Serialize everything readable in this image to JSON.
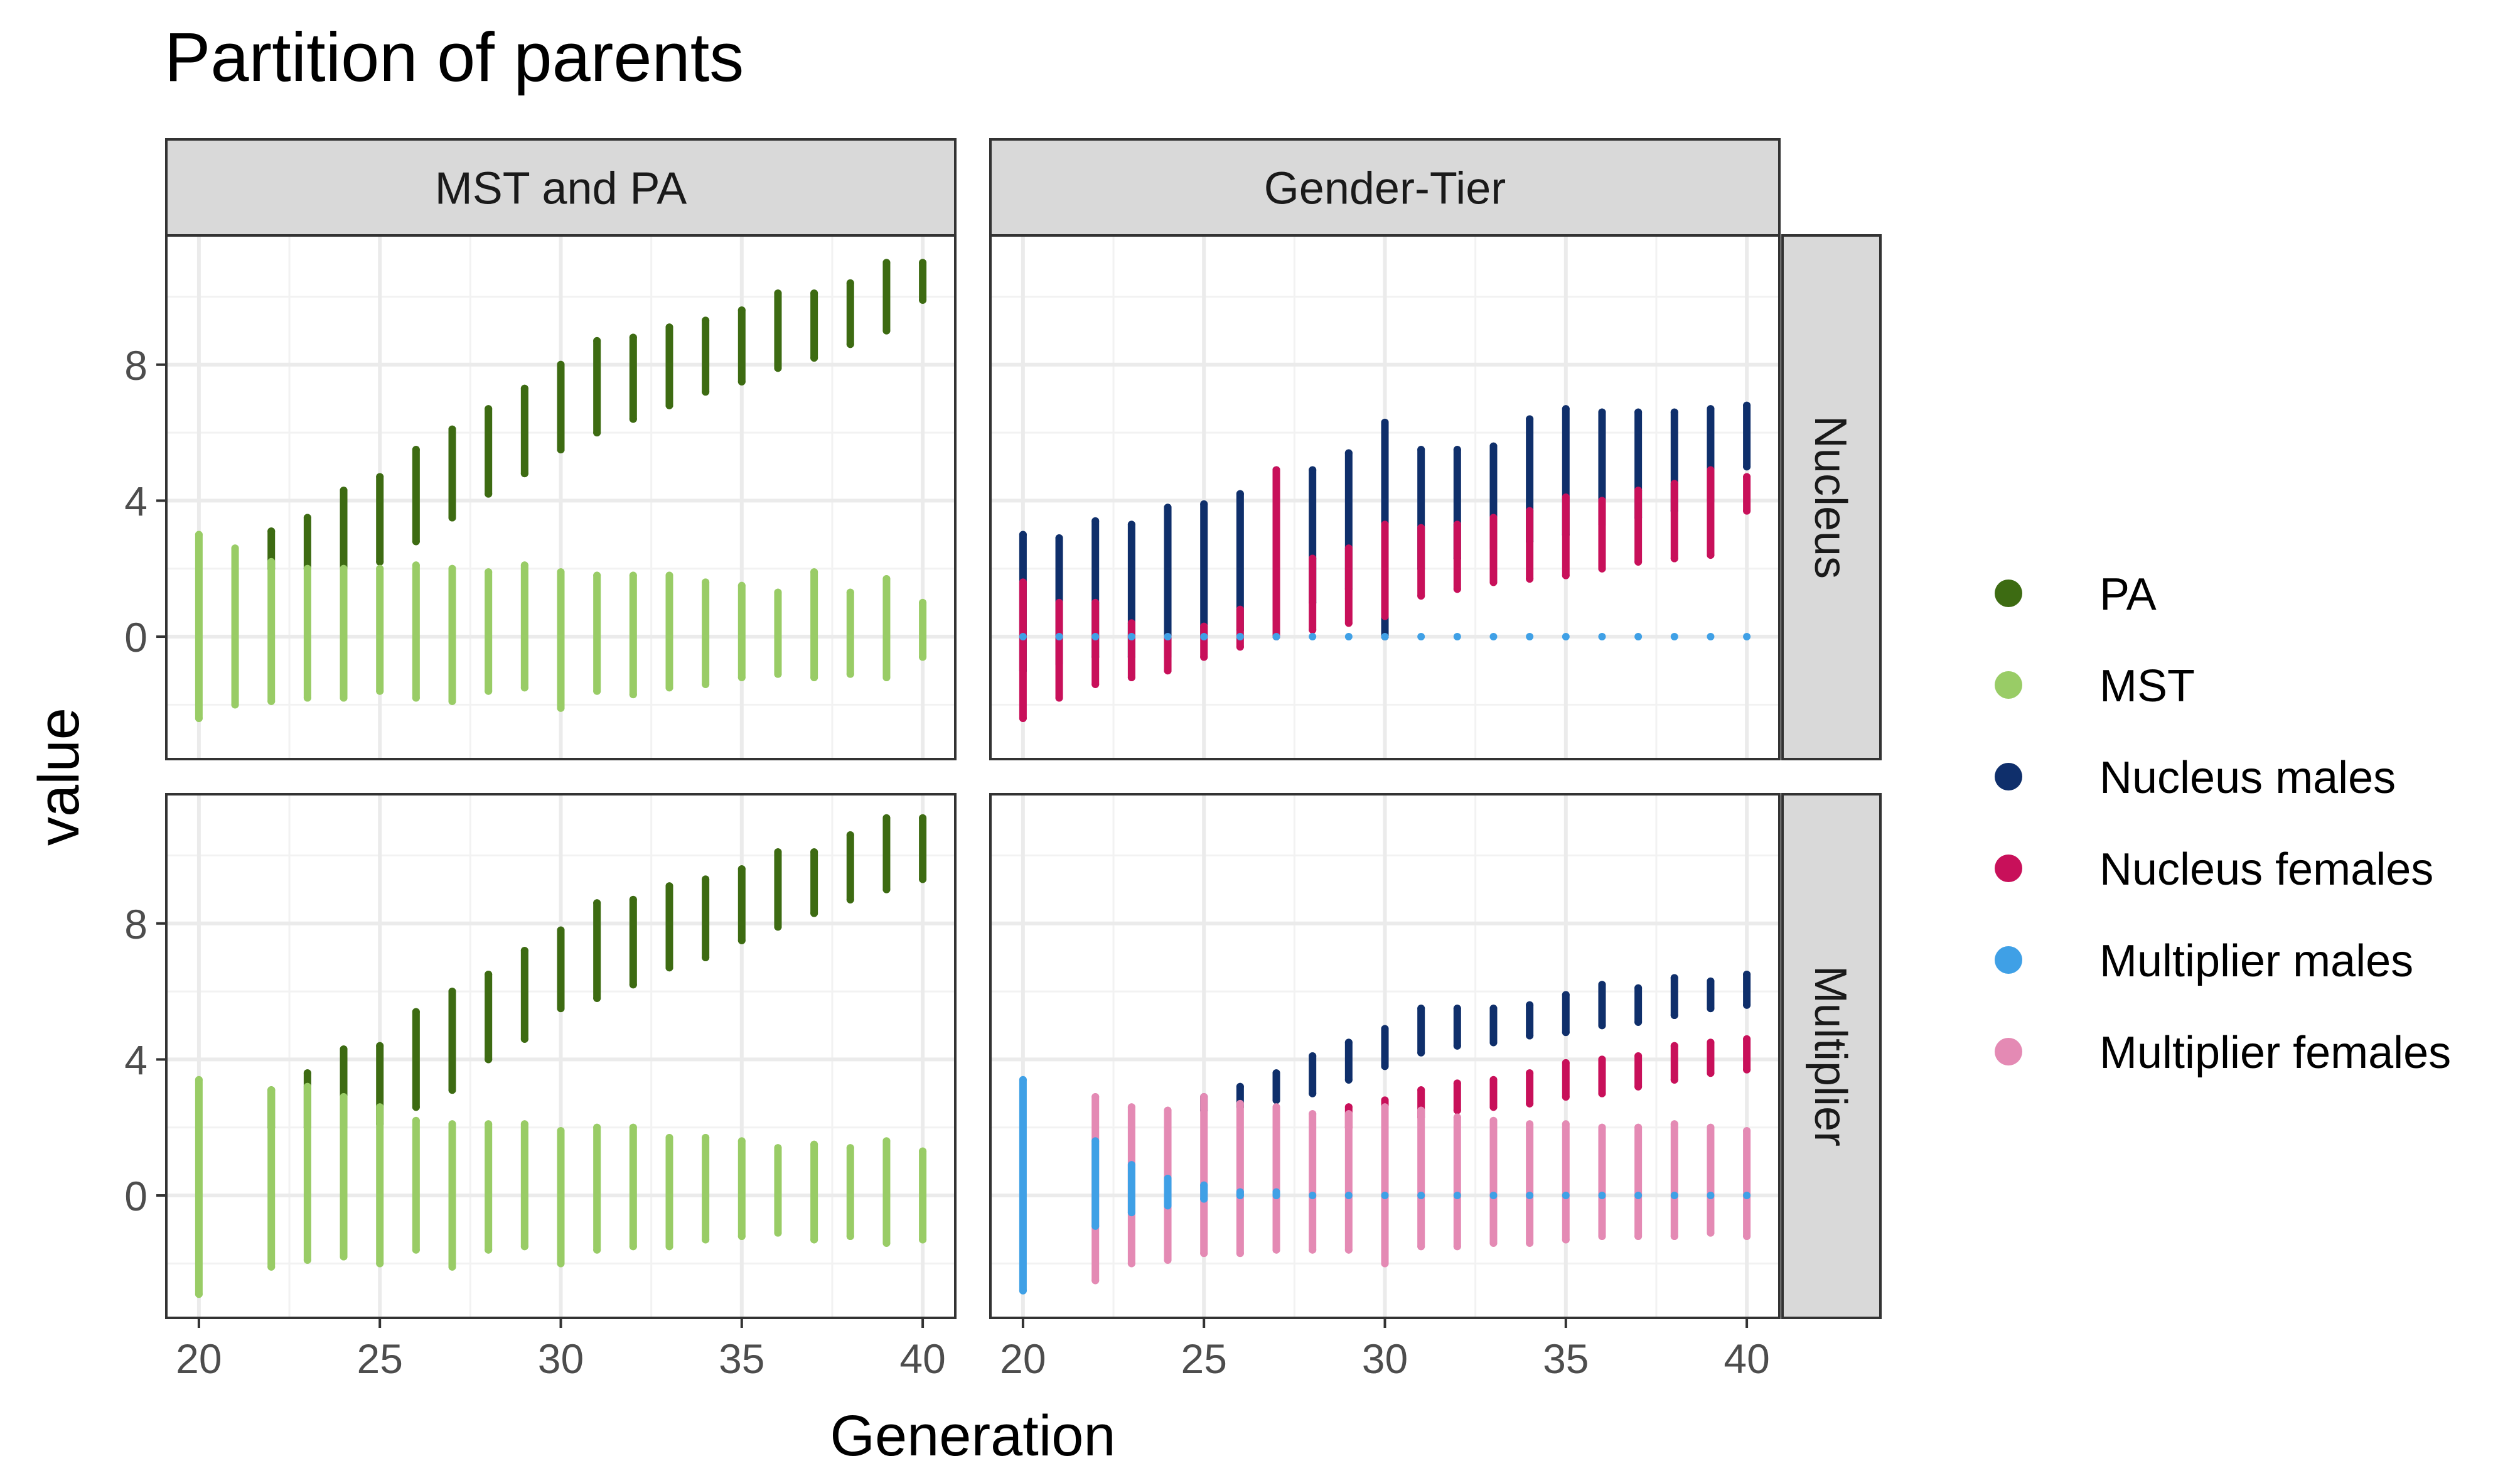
{
  "chart_data": {
    "type": "scatter",
    "title": "Partition of parents",
    "xlabel": "Generation",
    "ylabel": "value",
    "xlim": [
      19.1,
      40.9
    ],
    "ylim": [
      -3.6,
      11.8
    ],
    "x_ticks": [
      20,
      25,
      30,
      35,
      40
    ],
    "y_ticks": [
      0,
      4,
      8
    ],
    "grid": true,
    "legend_position": "right",
    "facet_columns": [
      "MST and PA",
      "Gender-Tier"
    ],
    "facet_rows": [
      "Nucleus",
      "Multiplier"
    ],
    "legend": [
      {
        "label": "PA",
        "color": "#3d6b12"
      },
      {
        "label": "MST",
        "color": "#99cc66"
      },
      {
        "label": "Nucleus males",
        "color": "#0f2f6b"
      },
      {
        "label": "Nucleus females",
        "color": "#c8105a"
      },
      {
        "label": "Multiplier males",
        "color": "#3fa0e6"
      },
      {
        "label": "Multiplier females",
        "color": "#e48ab4"
      }
    ],
    "panels": [
      {
        "column": "MST and PA",
        "row": "Nucleus",
        "series": [
          {
            "name": "PA",
            "color": "#3d6b12",
            "x": [
              22,
              23,
              24,
              25,
              26,
              27,
              28,
              29,
              30,
              31,
              32,
              33,
              34,
              35,
              36,
              37,
              38,
              39,
              40
            ],
            "ymin": [
              2.0,
              2.0,
              2.0,
              2.2,
              2.8,
              3.5,
              4.2,
              4.8,
              5.5,
              6.0,
              6.4,
              6.8,
              7.2,
              7.5,
              7.9,
              8.2,
              8.6,
              9.0,
              9.9
            ],
            "ymax": [
              3.1,
              3.5,
              4.3,
              4.7,
              5.5,
              6.1,
              6.7,
              7.3,
              8.0,
              8.7,
              8.8,
              9.1,
              9.3,
              9.6,
              10.1,
              10.1,
              10.4,
              11.0,
              11.0
            ]
          },
          {
            "name": "MST",
            "color": "#99cc66",
            "x": [
              20,
              21,
              22,
              23,
              24,
              25,
              26,
              27,
              28,
              29,
              30,
              31,
              32,
              33,
              34,
              35,
              36,
              37,
              38,
              39,
              40
            ],
            "ymin": [
              -2.4,
              -2.0,
              -1.9,
              -1.8,
              -1.8,
              -1.6,
              -1.8,
              -1.9,
              -1.6,
              -1.5,
              -2.1,
              -1.6,
              -1.7,
              -1.5,
              -1.4,
              -1.2,
              -1.1,
              -1.2,
              -1.1,
              -1.2,
              -0.6
            ],
            "ymax": [
              3.0,
              2.6,
              2.2,
              2.0,
              2.0,
              2.0,
              2.1,
              2.0,
              1.9,
              2.1,
              1.9,
              1.8,
              1.8,
              1.8,
              1.6,
              1.5,
              1.3,
              1.9,
              1.3,
              1.7,
              1.0
            ]
          }
        ]
      },
      {
        "column": "Gender-Tier",
        "row": "Nucleus",
        "series": [
          {
            "name": "Nucleus males",
            "color": "#0f2f6b",
            "x": [
              20,
              21,
              22,
              23,
              24,
              25,
              26,
              27,
              28,
              29,
              30,
              31,
              32,
              33,
              34,
              35,
              36,
              37,
              38,
              39,
              40
            ],
            "ymin": [
              -1.0,
              -0.8,
              -0.6,
              -0.6,
              -0.6,
              0.0,
              0.2,
              0.5,
              1.0,
              1.4,
              0.0,
              2.0,
              2.3,
              2.6,
              2.8,
              3.0,
              3.3,
              3.5,
              3.7,
              4.0,
              5.0
            ],
            "ymax": [
              3.0,
              2.9,
              3.4,
              3.3,
              3.8,
              3.9,
              4.2,
              4.9,
              4.9,
              5.4,
              6.3,
              5.5,
              5.5,
              5.6,
              6.4,
              6.7,
              6.6,
              6.6,
              6.6,
              6.7,
              6.8
            ]
          },
          {
            "name": "Nucleus females",
            "color": "#c8105a",
            "x": [
              20,
              21,
              22,
              23,
              24,
              25,
              26,
              27,
              28,
              29,
              30,
              31,
              32,
              33,
              34,
              35,
              36,
              37,
              38,
              39,
              40
            ],
            "ymin": [
              -2.4,
              -1.8,
              -1.4,
              -1.2,
              -1.0,
              -0.6,
              -0.3,
              0.0,
              0.2,
              0.4,
              0.6,
              1.2,
              1.4,
              1.6,
              1.7,
              1.8,
              2.0,
              2.2,
              2.3,
              2.4,
              3.7
            ],
            "ymax": [
              1.6,
              1.0,
              1.0,
              0.4,
              0.0,
              0.3,
              0.8,
              4.9,
              2.3,
              2.6,
              3.3,
              3.2,
              3.3,
              3.5,
              3.7,
              4.1,
              4.0,
              4.3,
              4.5,
              4.9,
              4.7
            ]
          },
          {
            "name": "Multiplier males",
            "color": "#3fa0e6",
            "x": [
              20,
              21,
              22,
              23,
              24,
              25,
              26,
              27,
              28,
              29,
              30,
              31,
              32,
              33,
              34,
              35,
              36,
              37,
              38,
              39,
              40
            ],
            "ymin": [
              0,
              0,
              0,
              0,
              0,
              0,
              0,
              0,
              0,
              0,
              0,
              0,
              0,
              0,
              0,
              0,
              0,
              0,
              0,
              0,
              0
            ],
            "ymax": [
              0,
              0,
              0,
              0,
              0,
              0,
              0,
              0,
              0,
              0,
              0,
              0,
              0,
              0,
              0,
              0,
              0,
              0,
              0,
              0,
              0
            ]
          }
        ]
      },
      {
        "column": "MST and PA",
        "row": "Multiplier",
        "series": [
          {
            "name": "PA",
            "color": "#3d6b12",
            "x": [
              22,
              23,
              24,
              25,
              26,
              27,
              28,
              29,
              30,
              31,
              32,
              33,
              34,
              35,
              36,
              37,
              38,
              39,
              40
            ],
            "ymin": [
              2.0,
              2.0,
              2.0,
              2.1,
              2.6,
              3.1,
              4.0,
              4.6,
              5.5,
              5.8,
              6.2,
              6.7,
              7.0,
              7.5,
              7.9,
              8.3,
              8.7,
              9.0,
              9.3
            ],
            "ymax": [
              3.1,
              3.6,
              4.3,
              4.4,
              5.4,
              6.0,
              6.5,
              7.2,
              7.8,
              8.6,
              8.7,
              9.1,
              9.3,
              9.6,
              10.1,
              10.1,
              10.6,
              11.1,
              11.1
            ]
          },
          {
            "name": "MST",
            "color": "#99cc66",
            "x": [
              20,
              22,
              23,
              24,
              25,
              26,
              27,
              28,
              29,
              30,
              31,
              32,
              33,
              34,
              35,
              36,
              37,
              38,
              39,
              40
            ],
            "ymin": [
              -2.9,
              -2.1,
              -1.9,
              -1.8,
              -2.0,
              -1.6,
              -2.1,
              -1.6,
              -1.5,
              -2.0,
              -1.6,
              -1.5,
              -1.5,
              -1.3,
              -1.2,
              -1.1,
              -1.3,
              -1.2,
              -1.4,
              -1.3
            ],
            "ymax": [
              3.4,
              3.1,
              3.2,
              2.9,
              2.6,
              2.2,
              2.1,
              2.1,
              2.1,
              1.9,
              2.0,
              2.0,
              1.7,
              1.7,
              1.6,
              1.4,
              1.5,
              1.4,
              1.6,
              1.3
            ]
          }
        ]
      },
      {
        "column": "Gender-Tier",
        "row": "Multiplier",
        "series": [
          {
            "name": "Nucleus males",
            "color": "#0f2f6b",
            "x": [
              25,
              26,
              27,
              28,
              29,
              30,
              31,
              32,
              33,
              34,
              35,
              36,
              37,
              38,
              39,
              40
            ],
            "ymin": [
              2.5,
              2.6,
              2.8,
              3.0,
              3.4,
              3.8,
              4.2,
              4.4,
              4.5,
              4.7,
              4.8,
              5.0,
              5.1,
              5.3,
              5.5,
              5.6
            ],
            "ymax": [
              2.9,
              3.2,
              3.6,
              4.1,
              4.5,
              4.9,
              5.5,
              5.5,
              5.5,
              5.6,
              5.9,
              6.2,
              6.1,
              6.4,
              6.3,
              6.5
            ]
          },
          {
            "name": "Nucleus females",
            "color": "#c8105a",
            "x": [
              29,
              30,
              31,
              32,
              33,
              34,
              35,
              36,
              37,
              38,
              39,
              40
            ],
            "ymin": [
              2.0,
              2.1,
              2.3,
              2.5,
              2.6,
              2.7,
              2.9,
              3.0,
              3.2,
              3.4,
              3.6,
              3.7
            ],
            "ymax": [
              2.6,
              2.8,
              3.1,
              3.3,
              3.4,
              3.6,
              3.9,
              4.0,
              4.1,
              4.4,
              4.5,
              4.6
            ]
          },
          {
            "name": "Multiplier females",
            "color": "#e48ab4",
            "x": [
              22,
              23,
              24,
              25,
              26,
              27,
              28,
              29,
              30,
              31,
              32,
              33,
              34,
              35,
              36,
              37,
              38,
              39,
              40
            ],
            "ymin": [
              -2.5,
              -2.0,
              -1.9,
              -1.7,
              -1.7,
              -1.6,
              -1.6,
              -1.6,
              -2.0,
              -1.5,
              -1.5,
              -1.4,
              -1.4,
              -1.3,
              -1.2,
              -1.2,
              -1.2,
              -1.1,
              -1.2
            ],
            "ymax": [
              2.9,
              2.6,
              2.5,
              2.9,
              2.7,
              2.6,
              2.4,
              2.4,
              2.6,
              2.5,
              2.3,
              2.2,
              2.1,
              2.1,
              2.0,
              2.0,
              2.1,
              2.0,
              1.9
            ]
          },
          {
            "name": "Multiplier males",
            "color": "#3fa0e6",
            "x": [
              20,
              22,
              23,
              24,
              25,
              26,
              27,
              28,
              29,
              30,
              31,
              32,
              33,
              34,
              35,
              36,
              37,
              38,
              39,
              40
            ],
            "ymin": [
              -2.8,
              -0.9,
              -0.5,
              -0.3,
              -0.1,
              0,
              0,
              0,
              0,
              0,
              0,
              0,
              0,
              0,
              0,
              0,
              0,
              0,
              0,
              0
            ],
            "ymax": [
              3.4,
              1.6,
              0.9,
              0.5,
              0.3,
              0.1,
              0.1,
              0,
              0,
              0,
              0,
              0,
              0,
              0,
              0,
              0,
              0,
              0,
              0,
              0
            ]
          }
        ]
      }
    ]
  }
}
